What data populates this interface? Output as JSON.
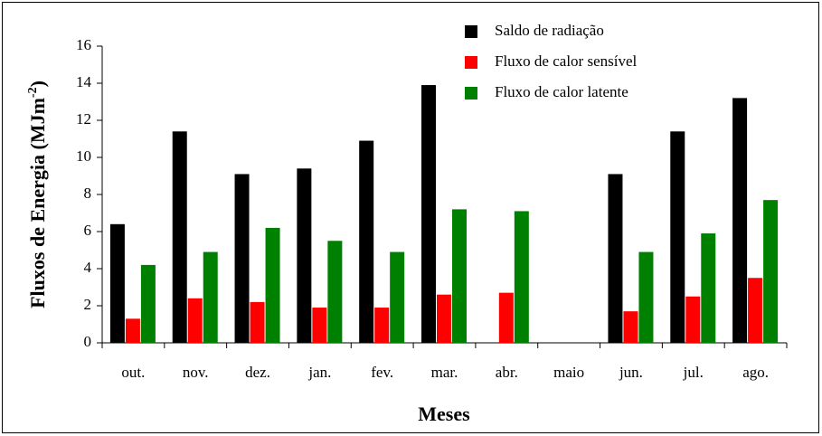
{
  "chart_data": {
    "type": "bar",
    "xlabel": "Meses",
    "ylabel": [
      "Fluxos de Energia (MJm",
      "-2",
      ")"
    ],
    "categories": [
      "out.",
      "nov.",
      "dez.",
      "jan.",
      "fev.",
      "mar.",
      "abr.",
      "maio",
      "jun.",
      "jul.",
      "ago."
    ],
    "series": [
      {
        "name": "Saldo de radiação",
        "color": "#000000",
        "values": [
          6.4,
          11.4,
          9.1,
          9.4,
          10.9,
          13.9,
          null,
          null,
          9.1,
          11.4,
          13.2
        ]
      },
      {
        "name": "Fluxo de calor sensível",
        "color": "#ff0000",
        "values": [
          1.3,
          2.4,
          2.2,
          1.9,
          1.9,
          2.6,
          2.7,
          null,
          1.7,
          2.5,
          3.5
        ]
      },
      {
        "name": "Fluxo de calor latente",
        "color": "#008000",
        "values": [
          4.2,
          4.9,
          6.2,
          5.5,
          4.9,
          7.2,
          7.1,
          null,
          4.9,
          5.9,
          7.7
        ]
      }
    ],
    "ylim": [
      0,
      16
    ],
    "yticks": [
      0,
      2,
      4,
      6,
      8,
      10,
      12,
      14,
      16
    ],
    "legend": "top-right"
  }
}
